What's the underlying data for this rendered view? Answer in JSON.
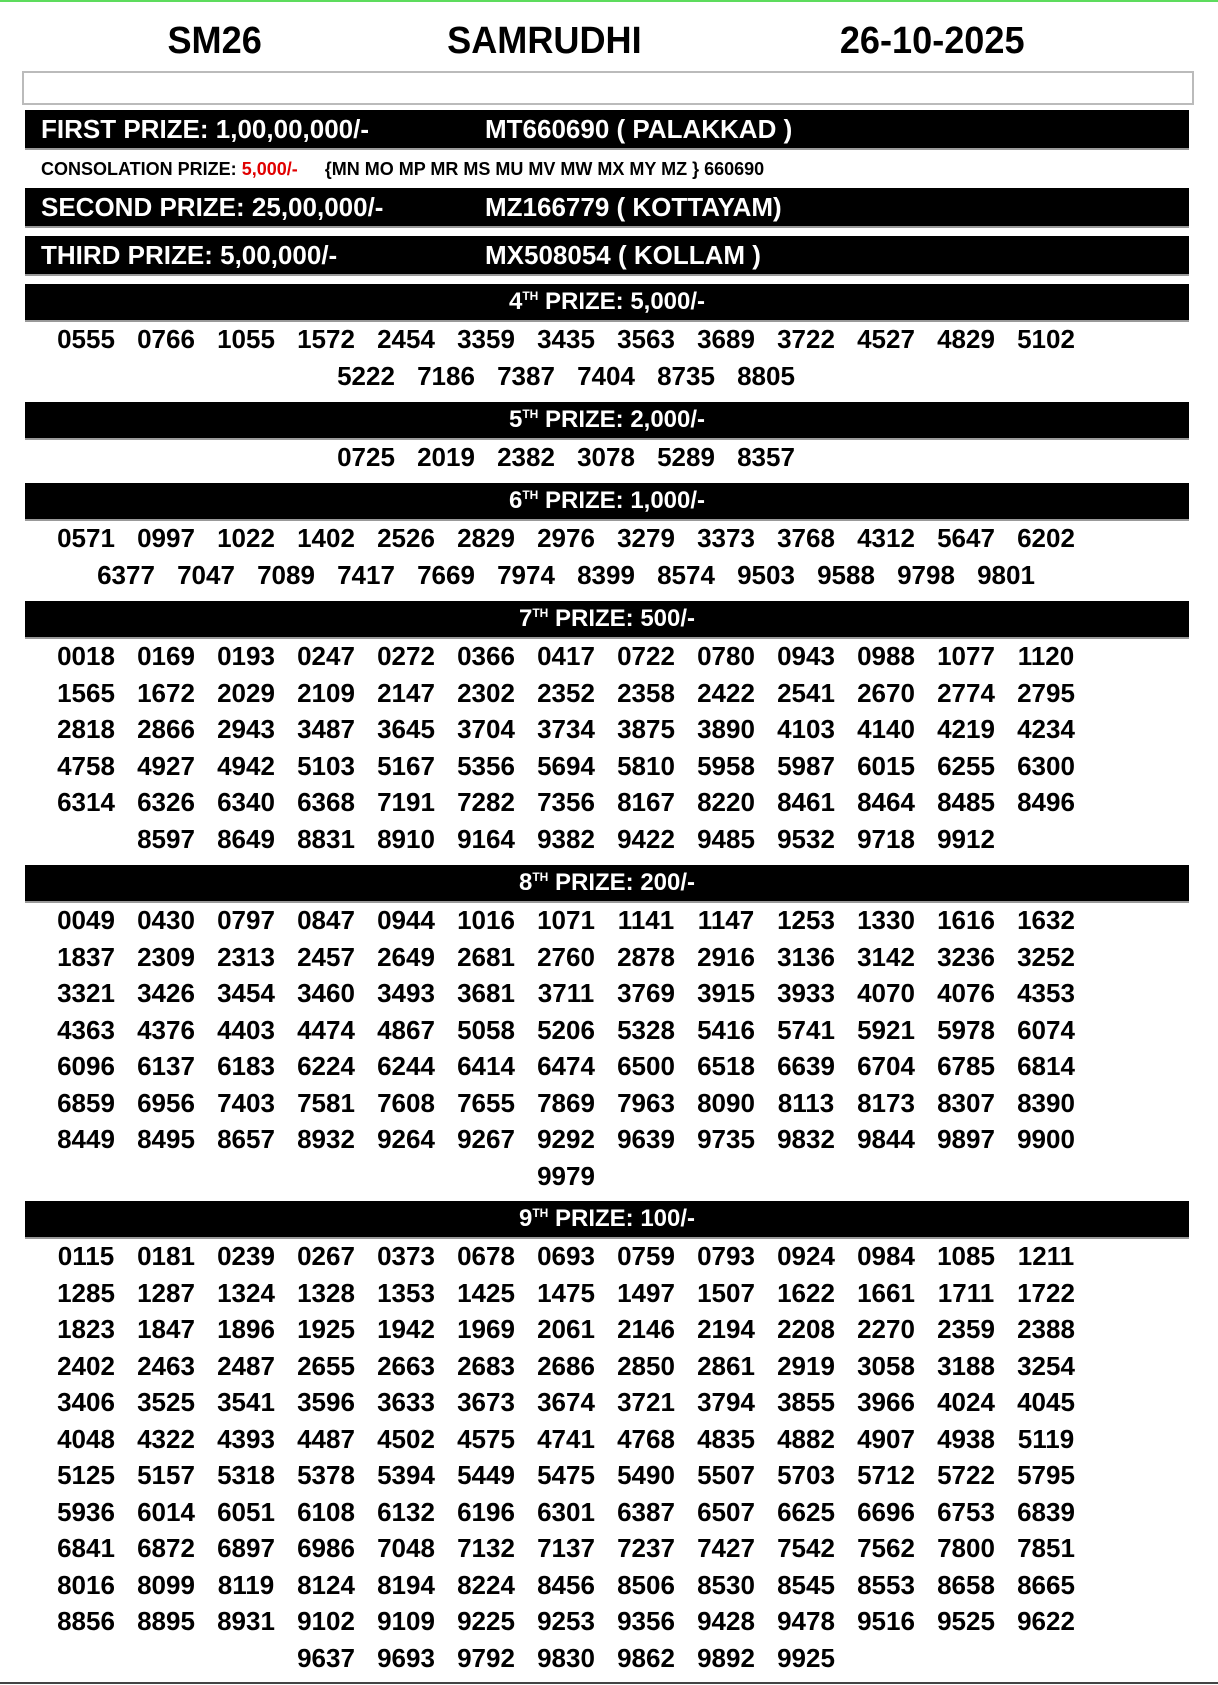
{
  "header": {
    "code": "SM26",
    "name": "SAMRUDHI",
    "date": "26-10-2025"
  },
  "first_prize": {
    "label": "FIRST PRIZE: 1,00,00,000/-",
    "winner": "MT660690 ( PALAKKAD )"
  },
  "consolation": {
    "label": "CONSOLATION PRIZE:",
    "amount": "5,000/-",
    "series": "{MN MO MP MR MS MU MV MW MX MY MZ } 660690",
    "amount_color": "#e00000"
  },
  "second_prize": {
    "label": "SECOND PRIZE: 25,00,000/-",
    "winner": "MZ166779 ( KOTTAYAM)"
  },
  "third_prize": {
    "label": "THIRD PRIZE: 5,00,000/-",
    "winner": "MX508054 ( KOLLAM )"
  },
  "sections": [
    {
      "ord": "4",
      "sup": "TH",
      "label": " PRIZE: 5,000/-",
      "numbers": [
        "0555",
        "0766",
        "1055",
        "1572",
        "2454",
        "3359",
        "3435",
        "3563",
        "3689",
        "3722",
        "4527",
        "4829",
        "5102",
        "5222",
        "7186",
        "7387",
        "7404",
        "8735",
        "8805"
      ]
    },
    {
      "ord": "5",
      "sup": "TH",
      "label": " PRIZE: 2,000/-",
      "numbers": [
        "0725",
        "2019",
        "2382",
        "3078",
        "5289",
        "8357"
      ]
    },
    {
      "ord": "6",
      "sup": "TH",
      "label": " PRIZE: 1,000/-",
      "numbers": [
        "0571",
        "0997",
        "1022",
        "1402",
        "2526",
        "2829",
        "2976",
        "3279",
        "3373",
        "3768",
        "4312",
        "5647",
        "6202",
        "6377",
        "7047",
        "7089",
        "7417",
        "7669",
        "7974",
        "8399",
        "8574",
        "9503",
        "9588",
        "9798",
        "9801"
      ]
    },
    {
      "ord": "7",
      "sup": "TH",
      "label": " PRIZE: 500/-",
      "numbers": [
        "0018",
        "0169",
        "0193",
        "0247",
        "0272",
        "0366",
        "0417",
        "0722",
        "0780",
        "0943",
        "0988",
        "1077",
        "1120",
        "1565",
        "1672",
        "2029",
        "2109",
        "2147",
        "2302",
        "2352",
        "2358",
        "2422",
        "2541",
        "2670",
        "2774",
        "2795",
        "2818",
        "2866",
        "2943",
        "3487",
        "3645",
        "3704",
        "3734",
        "3875",
        "3890",
        "4103",
        "4140",
        "4219",
        "4234",
        "4758",
        "4927",
        "4942",
        "5103",
        "5167",
        "5356",
        "5694",
        "5810",
        "5958",
        "5987",
        "6015",
        "6255",
        "6300",
        "6314",
        "6326",
        "6340",
        "6368",
        "7191",
        "7282",
        "7356",
        "8167",
        "8220",
        "8461",
        "8464",
        "8485",
        "8496",
        "8597",
        "8649",
        "8831",
        "8910",
        "9164",
        "9382",
        "9422",
        "9485",
        "9532",
        "9718",
        "9912"
      ]
    },
    {
      "ord": "8",
      "sup": "TH",
      "label": " PRIZE: 200/-",
      "numbers": [
        "0049",
        "0430",
        "0797",
        "0847",
        "0944",
        "1016",
        "1071",
        "1141",
        "1147",
        "1253",
        "1330",
        "1616",
        "1632",
        "1837",
        "2309",
        "2313",
        "2457",
        "2649",
        "2681",
        "2760",
        "2878",
        "2916",
        "3136",
        "3142",
        "3236",
        "3252",
        "3321",
        "3426",
        "3454",
        "3460",
        "3493",
        "3681",
        "3711",
        "3769",
        "3915",
        "3933",
        "4070",
        "4076",
        "4353",
        "4363",
        "4376",
        "4403",
        "4474",
        "4867",
        "5058",
        "5206",
        "5328",
        "5416",
        "5741",
        "5921",
        "5978",
        "6074",
        "6096",
        "6137",
        "6183",
        "6224",
        "6244",
        "6414",
        "6474",
        "6500",
        "6518",
        "6639",
        "6704",
        "6785",
        "6814",
        "6859",
        "6956",
        "7403",
        "7581",
        "7608",
        "7655",
        "7869",
        "7963",
        "8090",
        "8113",
        "8173",
        "8307",
        "8390",
        "8449",
        "8495",
        "8657",
        "8932",
        "9264",
        "9267",
        "9292",
        "9639",
        "9735",
        "9832",
        "9844",
        "9897",
        "9900",
        "9979"
      ]
    },
    {
      "ord": "9",
      "sup": "TH",
      "label": " PRIZE: 100/-",
      "numbers": [
        "0115",
        "0181",
        "0239",
        "0267",
        "0373",
        "0678",
        "0693",
        "0759",
        "0793",
        "0924",
        "0984",
        "1085",
        "1211",
        "1285",
        "1287",
        "1324",
        "1328",
        "1353",
        "1425",
        "1475",
        "1497",
        "1507",
        "1622",
        "1661",
        "1711",
        "1722",
        "1823",
        "1847",
        "1896",
        "1925",
        "1942",
        "1969",
        "2061",
        "2146",
        "2194",
        "2208",
        "2270",
        "2359",
        "2388",
        "2402",
        "2463",
        "2487",
        "2655",
        "2663",
        "2683",
        "2686",
        "2850",
        "2861",
        "2919",
        "3058",
        "3188",
        "3254",
        "3406",
        "3525",
        "3541",
        "3596",
        "3633",
        "3673",
        "3674",
        "3721",
        "3794",
        "3855",
        "3966",
        "4024",
        "4045",
        "4048",
        "4322",
        "4393",
        "4487",
        "4502",
        "4575",
        "4741",
        "4768",
        "4835",
        "4882",
        "4907",
        "4938",
        "5119",
        "5125",
        "5157",
        "5318",
        "5378",
        "5394",
        "5449",
        "5475",
        "5490",
        "5507",
        "5703",
        "5712",
        "5722",
        "5795",
        "5936",
        "6014",
        "6051",
        "6108",
        "6132",
        "6196",
        "6301",
        "6387",
        "6507",
        "6625",
        "6696",
        "6753",
        "6839",
        "6841",
        "6872",
        "6897",
        "6986",
        "7048",
        "7132",
        "7137",
        "7237",
        "7427",
        "7542",
        "7562",
        "7800",
        "7851",
        "8016",
        "8099",
        "8119",
        "8124",
        "8194",
        "8224",
        "8456",
        "8506",
        "8530",
        "8545",
        "8553",
        "8658",
        "8665",
        "8856",
        "8895",
        "8931",
        "9102",
        "9109",
        "9225",
        "9253",
        "9356",
        "9428",
        "9478",
        "9516",
        "9525",
        "9622",
        "9637",
        "9693",
        "9792",
        "9830",
        "9862",
        "9892",
        "9925"
      ]
    }
  ]
}
